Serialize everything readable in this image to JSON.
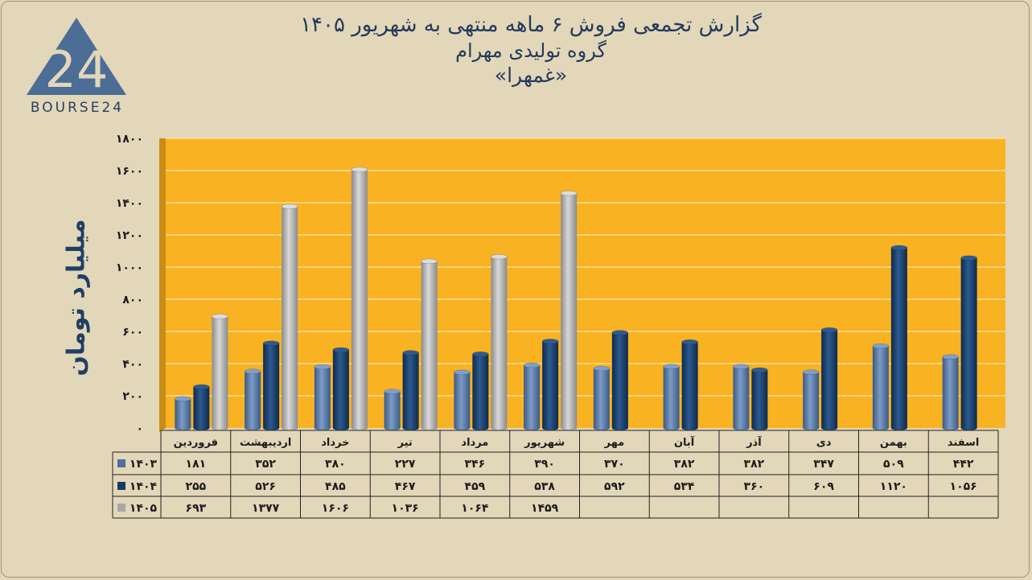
{
  "header": {
    "title_line1": "گزارش تجمعی فروش ۶ ماهه منتهی به شهریور ۱۴۰۵",
    "title_line2": "گروه تولیدی مهرام",
    "title_line3": "«غمهرا»"
  },
  "logo": {
    "text": "BOURSE24",
    "mark": "24"
  },
  "colors": {
    "s1403": "#4e6f9e",
    "s1404": "#163a66",
    "s1405": "#a8a8a8",
    "plot_bg": "#f8b222",
    "page_bg": "#e3d7ba"
  },
  "chart_data": {
    "type": "bar",
    "title": "گزارش تجمعی فروش ۶ ماهه منتهی به شهریور ۱۴۰۵",
    "ylabel": "میلیارد تومان",
    "ylim": [
      0,
      1800
    ],
    "yticks": [
      0,
      200,
      400,
      600,
      800,
      1000,
      1200,
      1400,
      1600,
      1800
    ],
    "ytick_labels": [
      "۰",
      "۲۰۰",
      "۴۰۰",
      "۶۰۰",
      "۸۰۰",
      "۱۰۰۰",
      "۱۲۰۰",
      "۱۴۰۰",
      "۱۶۰۰",
      "۱۸۰۰"
    ],
    "grid": true,
    "legend_position": "data-table-left",
    "categories": [
      "فروردین",
      "اردیبهشت",
      "خرداد",
      "تیر",
      "مرداد",
      "شهریور",
      "مهر",
      "آبان",
      "آذر",
      "دی",
      "بهمن",
      "اسفند"
    ],
    "series": [
      {
        "name": "۱۴۰۳",
        "values": [
          181,
          352,
          380,
          227,
          346,
          390,
          370,
          382,
          382,
          347,
          509,
          442
        ],
        "labels": [
          "۱۸۱",
          "۳۵۲",
          "۳۸۰",
          "۲۲۷",
          "۳۴۶",
          "۳۹۰",
          "۳۷۰",
          "۳۸۲",
          "۳۸۲",
          "۳۴۷",
          "۵۰۹",
          "۴۴۲"
        ]
      },
      {
        "name": "۱۴۰۴",
        "values": [
          255,
          526,
          485,
          467,
          459,
          538,
          592,
          534,
          360,
          609,
          1120,
          1056
        ],
        "labels": [
          "۲۵۵",
          "۵۲۶",
          "۴۸۵",
          "۴۶۷",
          "۴۵۹",
          "۵۳۸",
          "۵۹۲",
          "۵۳۴",
          "۳۶۰",
          "۶۰۹",
          "۱۱۲۰",
          "۱۰۵۶"
        ]
      },
      {
        "name": "۱۴۰۵",
        "values": [
          693,
          1377,
          1606,
          1036,
          1064,
          1459,
          null,
          null,
          null,
          null,
          null,
          null
        ],
        "labels": [
          "۶۹۳",
          "۱۳۷۷",
          "۱۶۰۶",
          "۱۰۳۶",
          "۱۰۶۴",
          "۱۴۵۹",
          "",
          "",
          "",
          "",
          "",
          ""
        ]
      }
    ]
  }
}
